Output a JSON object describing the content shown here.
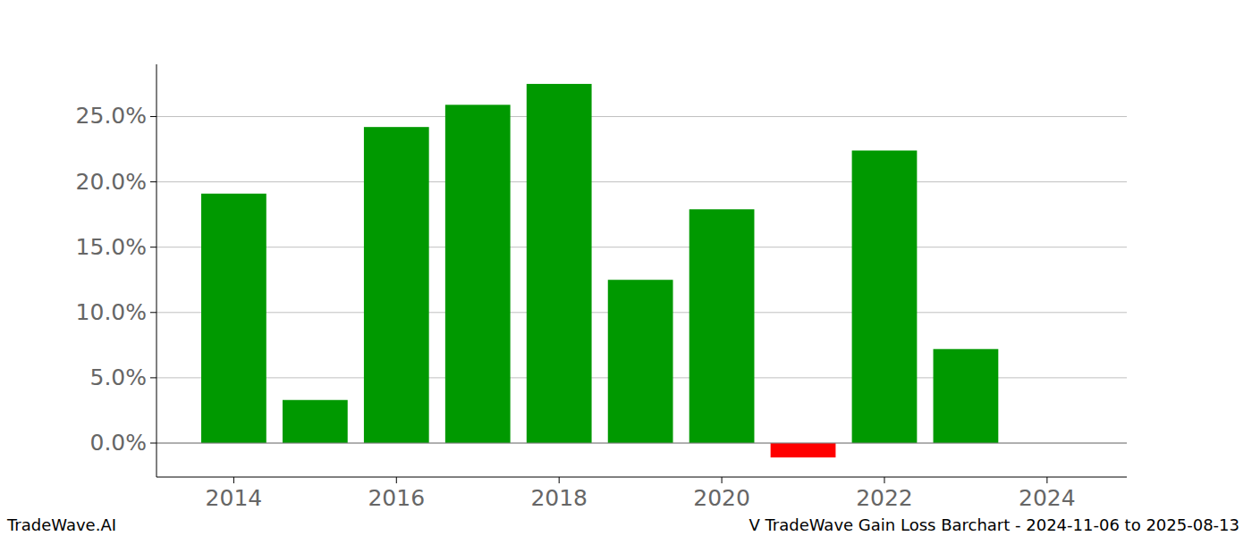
{
  "chart_data": {
    "type": "bar",
    "x": [
      2014,
      2015,
      2016,
      2017,
      2018,
      2019,
      2020,
      2021,
      2022,
      2023
    ],
    "values": [
      19.1,
      3.3,
      24.2,
      25.9,
      27.5,
      12.5,
      17.9,
      -1.1,
      22.4,
      7.2
    ],
    "colors": [
      "#009900",
      "#009900",
      "#009900",
      "#009900",
      "#009900",
      "#009900",
      "#009900",
      "#ff0000",
      "#009900",
      "#009900"
    ],
    "xlim": [
      2013.05,
      2024.98
    ],
    "xticks": [
      2014,
      2016,
      2018,
      2020,
      2022,
      2024
    ],
    "ylim": [
      -2.6,
      29.0
    ],
    "yticks": [
      {
        "value": 0,
        "label": "0.0%"
      },
      {
        "value": 5,
        "label": "5.0%"
      },
      {
        "value": 10,
        "label": "10.0%"
      },
      {
        "value": 15,
        "label": "15.0%"
      },
      {
        "value": 20,
        "label": "20.0%"
      },
      {
        "value": 25,
        "label": "25.0%"
      }
    ],
    "grid": true,
    "annotations": [
      "TradeWave.AI",
      "V TradeWave Gain Loss Barchart - 2024-11-06 to 2025-08-13"
    ]
  }
}
